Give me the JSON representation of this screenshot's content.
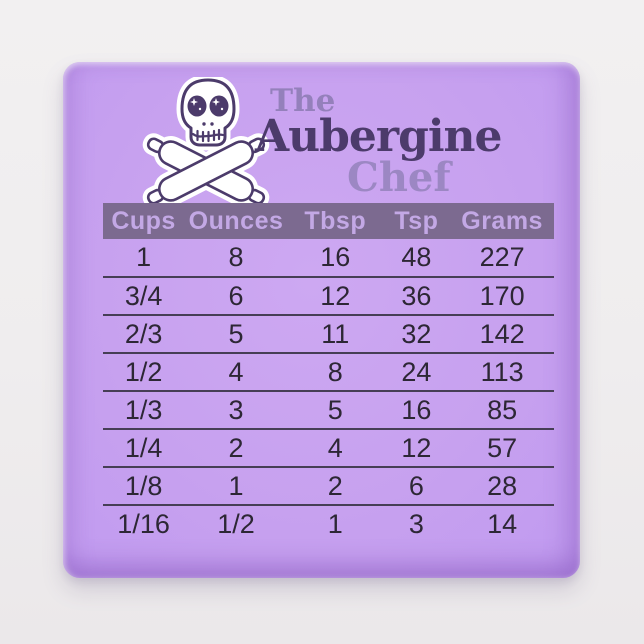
{
  "page": {
    "background_color": "#efedee"
  },
  "magnet": {
    "face_color": "#c7a1ef",
    "logo": {
      "icon": "skull-crossed-rolling-pins",
      "title_line1": "The",
      "title_line2": "Aubergine",
      "title_line3": "Chef",
      "line1_color": "#9480bb",
      "line2_color": "#4c3b6b",
      "line3_color": "#9c87c3",
      "outline_color": "#4c3b6b",
      "sticker_color": "#ffffff"
    },
    "table": {
      "headers": [
        "Cups",
        "Ounces",
        "Tbsp",
        "Tsp",
        "Grams"
      ],
      "rows": [
        [
          "1",
          "8",
          "16",
          "48",
          "227"
        ],
        [
          "3/4",
          "6",
          "12",
          "36",
          "170"
        ],
        [
          "2/3",
          "5",
          "11",
          "32",
          "142"
        ],
        [
          "1/2",
          "4",
          "8",
          "24",
          "113"
        ],
        [
          "1/3",
          "3",
          "5",
          "16",
          "85"
        ],
        [
          "1/4",
          "2",
          "4",
          "12",
          "57"
        ],
        [
          "1/8",
          "1",
          "2",
          "6",
          "28"
        ],
        [
          "1/16",
          "1/2",
          "1",
          "3",
          "14"
        ]
      ],
      "header_bg": "#7c6a90",
      "header_text_color": "#c3a8e5",
      "cell_text_color": "#2d2735",
      "divider_color": "#463e55"
    }
  },
  "chart_data": {
    "type": "table",
    "title": "The Aubergine Chef measurement conversion chart",
    "columns": [
      "Cups",
      "Ounces",
      "Tbsp",
      "Tsp",
      "Grams"
    ],
    "rows": [
      [
        "1",
        "8",
        "16",
        "48",
        "227"
      ],
      [
        "3/4",
        "6",
        "12",
        "36",
        "170"
      ],
      [
        "2/3",
        "5",
        "11",
        "32",
        "142"
      ],
      [
        "1/2",
        "4",
        "8",
        "24",
        "113"
      ],
      [
        "1/3",
        "3",
        "5",
        "16",
        "85"
      ],
      [
        "1/4",
        "2",
        "4",
        "12",
        "57"
      ],
      [
        "1/8",
        "1",
        "2",
        "6",
        "28"
      ],
      [
        "1/16",
        "1/2",
        "1",
        "3",
        "14"
      ]
    ]
  }
}
